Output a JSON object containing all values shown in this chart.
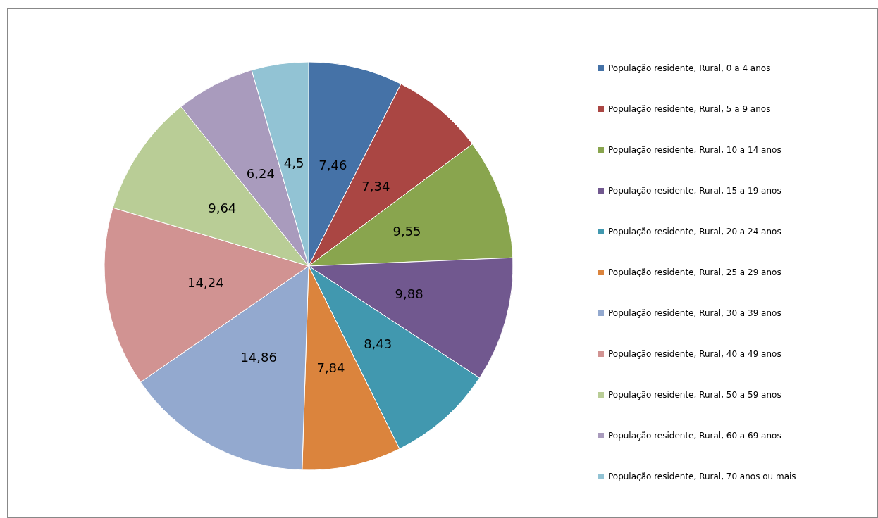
{
  "chart_data": {
    "type": "pie",
    "categories": [
      "População residente, Rural, 0 a 4 anos",
      "População residente, Rural, 5 a 9 anos",
      "População residente, Rural, 10 a 14 anos",
      "População residente, Rural, 15 a 19 anos",
      "População residente, Rural, 20 a 24 anos",
      "População residente, Rural, 25 a 29 anos",
      "População residente, Rural, 30 a 39 anos",
      "População residente, Rural, 40 a 49 anos",
      "População residente, Rural, 50 a 59 anos",
      "População residente, Rural, 60 a 69 anos",
      "População residente, Rural, 70 anos ou mais"
    ],
    "values": [
      7.46,
      7.34,
      9.55,
      9.88,
      8.43,
      7.84,
      14.86,
      14.24,
      9.64,
      6.24,
      4.5
    ],
    "value_labels": [
      "7,46",
      "7,34",
      "9,55",
      "9,88",
      "8,43",
      "7,84",
      "14,86",
      "14,24",
      "9,64",
      "6,24",
      "4,5"
    ],
    "colors": [
      "#4572a7",
      "#aa4643",
      "#89a54e",
      "#71588f",
      "#4198af",
      "#db843d",
      "#93a9cf",
      "#d19392",
      "#b9cd96",
      "#a99bbd",
      "#92c3d4"
    ],
    "legend": "right"
  }
}
